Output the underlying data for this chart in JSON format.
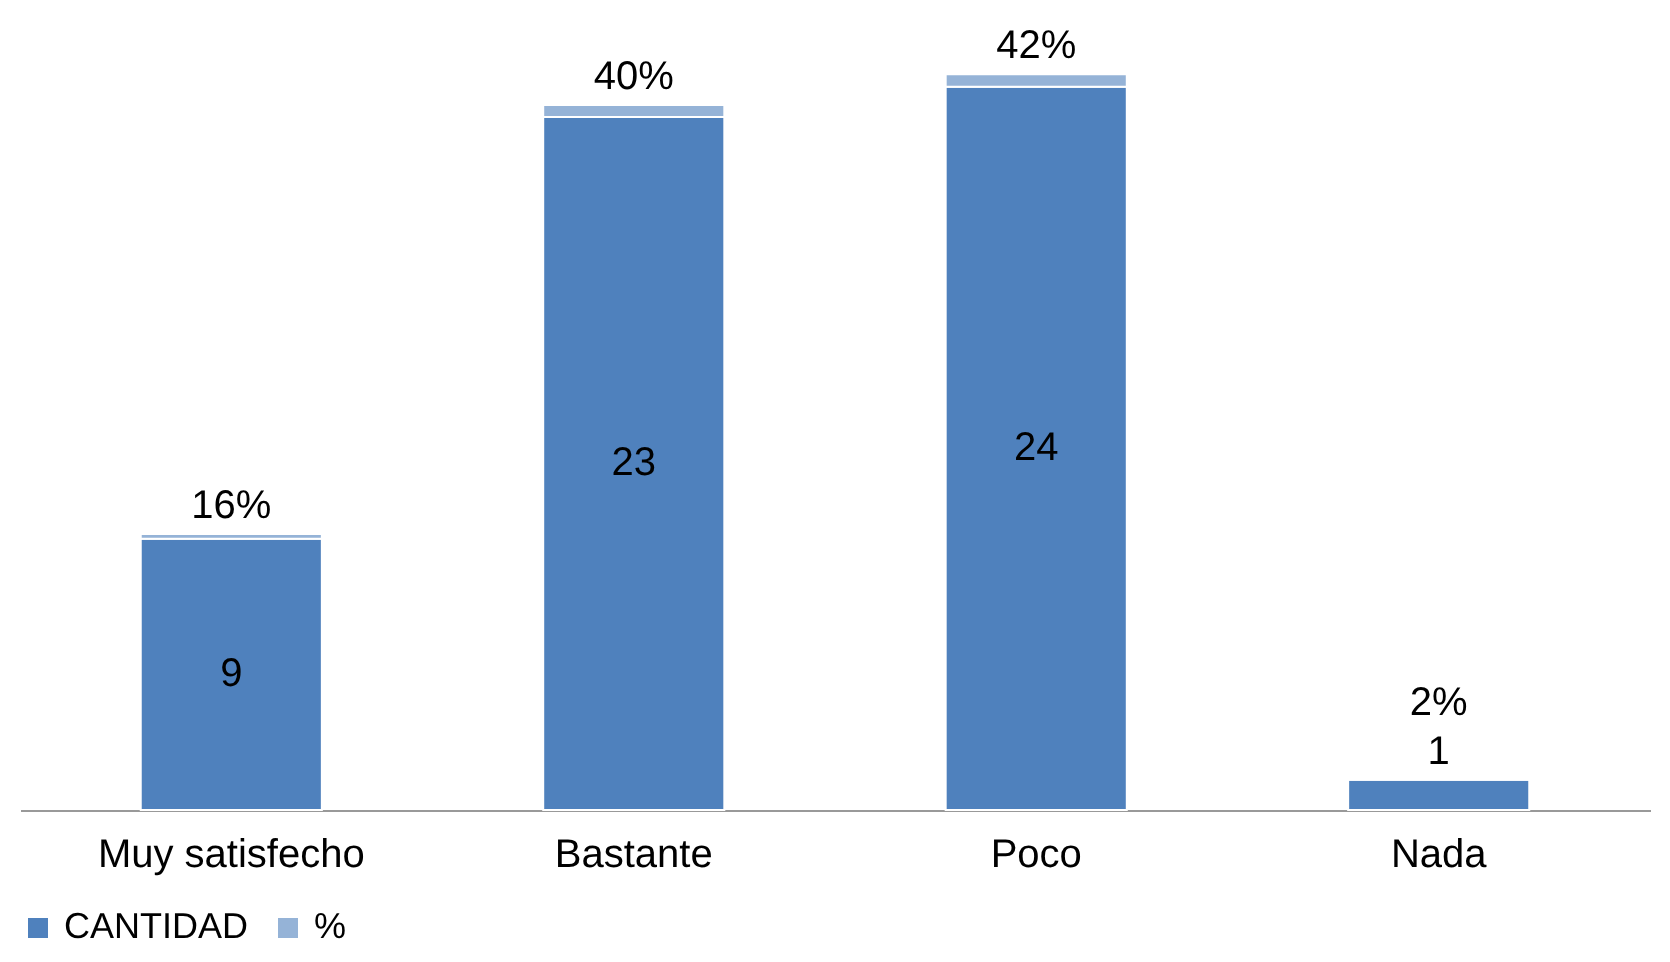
{
  "chart_data": {
    "type": "bar",
    "stacked": true,
    "categories": [
      "Muy satisfecho",
      "Bastante",
      "Poco",
      "Nada"
    ],
    "series": [
      {
        "name": "CANTIDAD",
        "color": "#4f81bd",
        "values": [
          9,
          23,
          24,
          1
        ],
        "value_labels": [
          "9",
          "23",
          "24",
          "1"
        ]
      },
      {
        "name": "%",
        "color": "#95b3d7",
        "values": [
          0.16,
          0.4,
          0.42,
          0.02
        ],
        "value_labels": [
          "16%",
          "40%",
          "42%",
          "2%"
        ]
      }
    ],
    "legend": "bottom",
    "tick_labels": "x",
    "grid": false
  }
}
